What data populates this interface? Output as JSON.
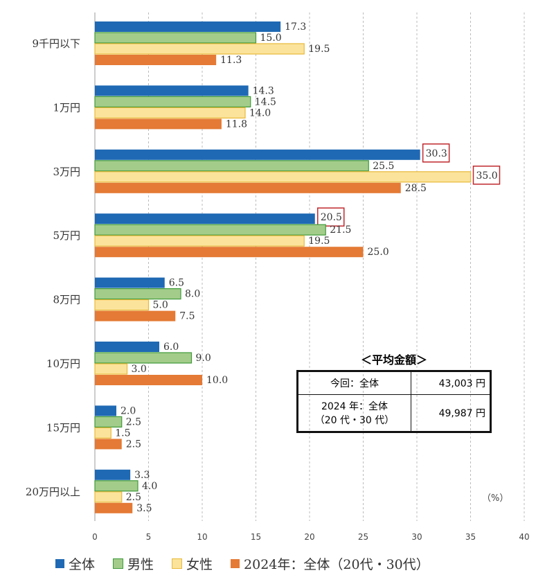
{
  "chart_data": {
    "type": "bar",
    "orientation": "horizontal",
    "categories": [
      "9千円以下",
      "1万円",
      "3万円",
      "5万円",
      "8万円",
      "10万円",
      "15万円",
      "20万円以上"
    ],
    "series": [
      {
        "name": "全体",
        "color": "#1f69b4",
        "values": [
          17.3,
          14.3,
          30.3,
          20.5,
          6.5,
          6.0,
          2.0,
          3.3
        ]
      },
      {
        "name": "男性",
        "color": "#a3cc8a",
        "stroke": "#3f9a3a",
        "values": [
          15.0,
          14.5,
          25.5,
          21.5,
          8.0,
          9.0,
          2.5,
          4.0
        ]
      },
      {
        "name": "女性",
        "color": "#fbe39c",
        "stroke": "#e8b93a",
        "values": [
          19.5,
          14.0,
          35.0,
          19.5,
          5.0,
          3.0,
          1.5,
          2.5
        ]
      },
      {
        "name": "2024年：全体（20代・30代）",
        "color": "#e47a35",
        "values": [
          11.3,
          11.8,
          28.5,
          25.0,
          7.5,
          10.0,
          2.5,
          3.5
        ]
      }
    ],
    "highlighted_labels": [
      "30.3",
      "35.0",
      "20.5"
    ],
    "highlight_color": "#c0282d",
    "xlim": [
      0,
      40
    ],
    "xticks": [
      0,
      5,
      10,
      15,
      20,
      25,
      30,
      35,
      40
    ],
    "grid": "vertical dashed",
    "unit_label": "（%）",
    "legend_position": "bottom"
  },
  "average_box": {
    "title": "＜平均金額＞",
    "rows": [
      {
        "label": "今回：全体",
        "value": "43,003 円"
      },
      {
        "label": "2024 年：全体\n（20 代・30 代）",
        "value": "49,987 円"
      }
    ]
  }
}
